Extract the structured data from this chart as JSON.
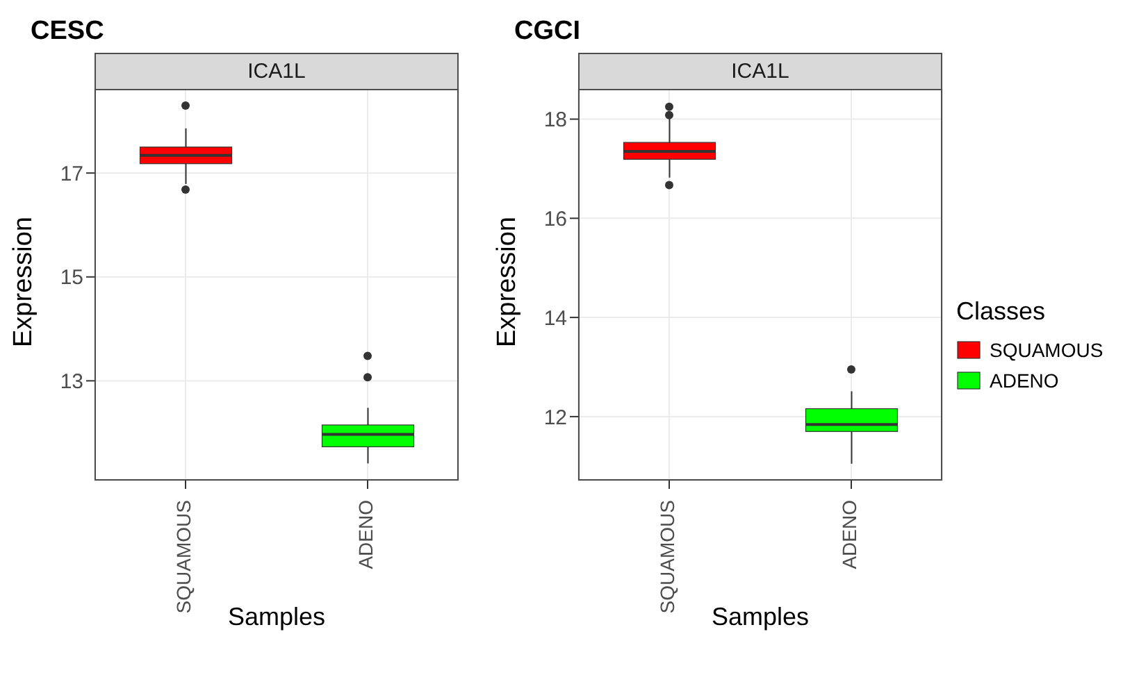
{
  "chart_data": [
    {
      "type": "box",
      "title": "CESC",
      "subtitle": "ICA1L",
      "xlabel": "Samples",
      "ylabel": "Expression",
      "categories": [
        "SQUAMOUS",
        "ADENO"
      ],
      "series": [
        {
          "color": "#ff0000",
          "boxes": [
            {
              "low": 16.79,
              "q1": 17.18,
              "median": 17.34,
              "q3": 17.5,
              "high": 17.86,
              "outliers": [
                18.3,
                16.68
              ]
            },
            null
          ]
        },
        {
          "color": "#00ff00",
          "boxes": [
            null,
            {
              "low": 11.41,
              "q1": 11.73,
              "median": 11.97,
              "q3": 12.15,
              "high": 12.48,
              "outliers": [
                13.48,
                13.07
              ]
            }
          ]
        }
      ],
      "ylim": [
        11.08,
        18.62
      ],
      "yticks": [
        13,
        15,
        17
      ],
      "grid": true
    },
    {
      "type": "box",
      "title": "CGCI",
      "subtitle": "ICA1L",
      "xlabel": "Samples",
      "ylabel": "Expression",
      "legend_title": "Classes",
      "categories": [
        "SQUAMOUS",
        "ADENO"
      ],
      "series": [
        {
          "name": "SQUAMOUS",
          "color": "#ff0000",
          "boxes": [
            {
              "low": 16.82,
              "q1": 17.19,
              "median": 17.35,
              "q3": 17.53,
              "high": 18.02,
              "outliers": [
                18.25,
                18.08,
                16.67
              ]
            },
            null
          ]
        },
        {
          "name": "ADENO",
          "color": "#00ff00",
          "boxes": [
            null,
            {
              "low": 11.05,
              "q1": 11.7,
              "median": 11.84,
              "q3": 12.16,
              "high": 12.51,
              "outliers": [
                12.95
              ]
            }
          ]
        }
      ],
      "ylim": [
        10.71,
        18.61
      ],
      "yticks": [
        12,
        14,
        16,
        18
      ],
      "grid": true,
      "legend": "right"
    }
  ]
}
